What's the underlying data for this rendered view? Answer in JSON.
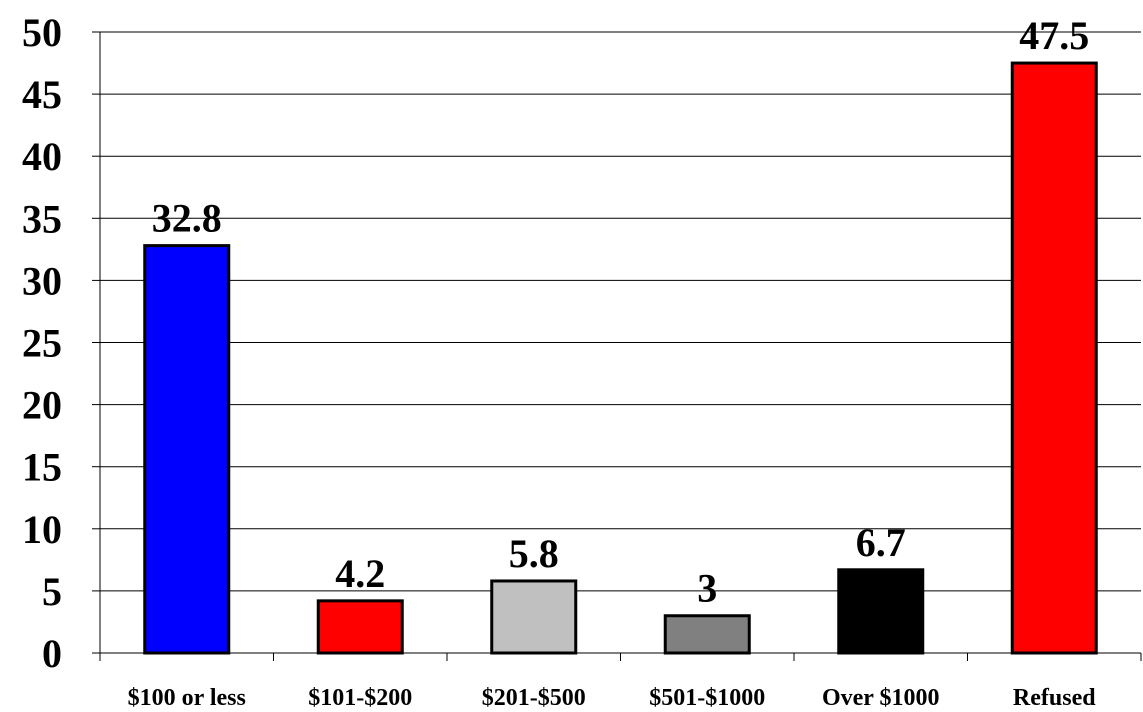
{
  "chart_data": {
    "type": "bar",
    "title": "",
    "xlabel": "",
    "ylabel": "",
    "categories": [
      "$100 or less",
      "$101-$200",
      "$201-$500",
      "$501-$1000",
      "Over $1000",
      "Refused"
    ],
    "values": [
      32.8,
      4.2,
      5.8,
      3,
      6.7,
      47.5
    ],
    "data_labels": [
      "32.8",
      "4.2",
      "5.8",
      "3",
      "6.7",
      "47.5"
    ],
    "bar_colors": [
      "#0000FF",
      "#FF0000",
      "#C0C0C0",
      "#808080",
      "#000000",
      "#FF0000"
    ],
    "ylim": [
      0,
      50
    ],
    "yticks": [
      0,
      5,
      10,
      15,
      20,
      25,
      30,
      35,
      40,
      45,
      50
    ],
    "ytick_labels": [
      "0",
      "5",
      "10",
      "15",
      "20",
      "25",
      "30",
      "35",
      "40",
      "45",
      "50"
    ],
    "grid": "horizontal",
    "legend": "none"
  }
}
